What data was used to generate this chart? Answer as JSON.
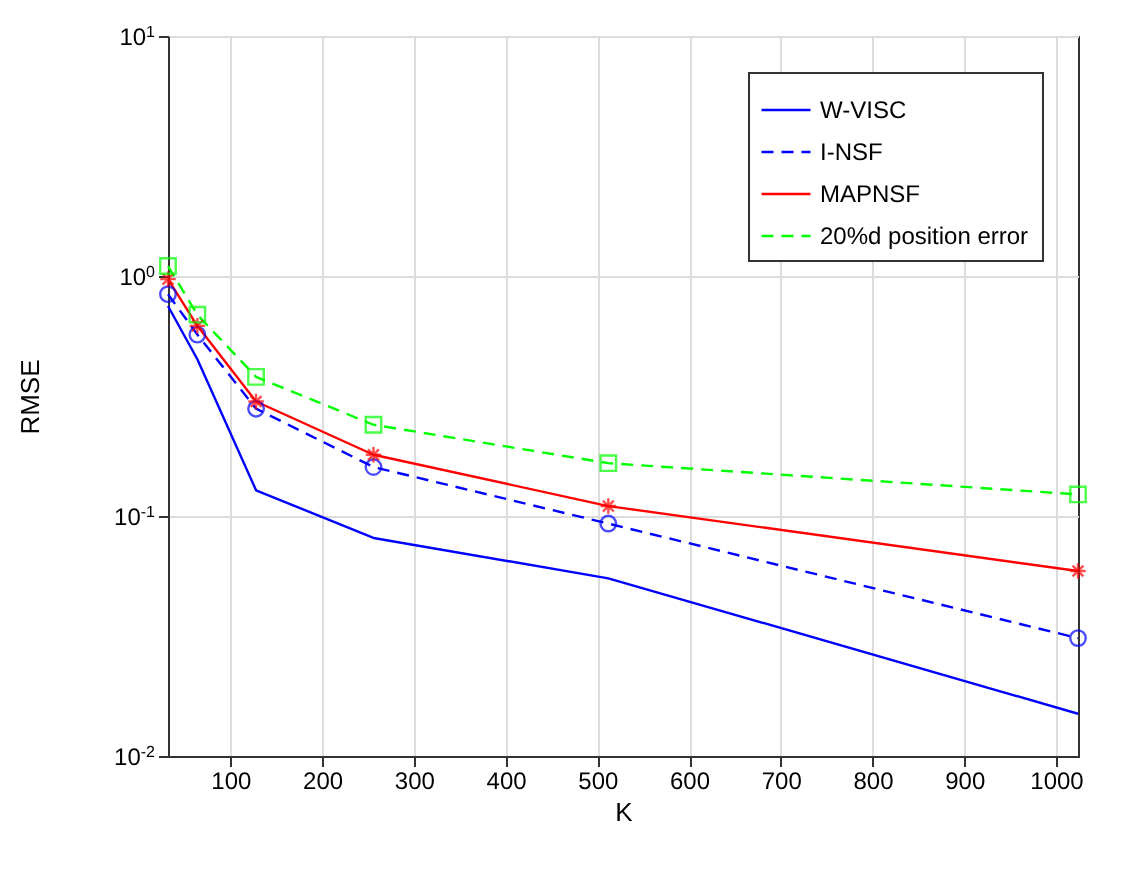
{
  "chart_data": {
    "type": "line",
    "xlabel": "K",
    "ylabel": "RMSE",
    "x": [
      32,
      64,
      128,
      256,
      512,
      1024
    ],
    "xlim": [
      32,
      1024
    ],
    "xticks": [
      100,
      200,
      300,
      400,
      500,
      600,
      700,
      800,
      900,
      1000
    ],
    "ylim": [
      0.01,
      10
    ],
    "yticks": [
      {
        "value": 0.01,
        "label": "10$^{-2}$"
      },
      {
        "value": 0.1,
        "label": "10$^{-1}$"
      },
      {
        "value": 1,
        "label": "10$^{0}$"
      },
      {
        "value": 10,
        "label": "10$^{1}$"
      }
    ],
    "log": "y",
    "grid": true,
    "legend": "top right",
    "series": [
      {
        "name": "W-VISC",
        "color": "#0000ff",
        "line_style": "solid",
        "marker": "none",
        "values": [
          0.75,
          0.45,
          0.128,
          0.081,
          0.055,
          0.015
        ]
      },
      {
        "name": "I-NSF",
        "color": "#0000ff",
        "line_style": "dashed",
        "marker": "circle",
        "values": [
          0.84,
          0.57,
          0.28,
          0.16,
          0.093,
          0.031
        ]
      },
      {
        "name": "MAPNSF",
        "color": "#ff0000",
        "line_style": "solid",
        "marker": "cross",
        "values": [
          0.97,
          0.62,
          0.3,
          0.18,
          0.11,
          0.059
        ]
      },
      {
        "name": "20%d position error",
        "color": "#00ff00",
        "line_style": "dashed",
        "marker": "square",
        "values": [
          1.1,
          0.69,
          0.38,
          0.24,
          0.166,
          0.123
        ]
      }
    ]
  }
}
